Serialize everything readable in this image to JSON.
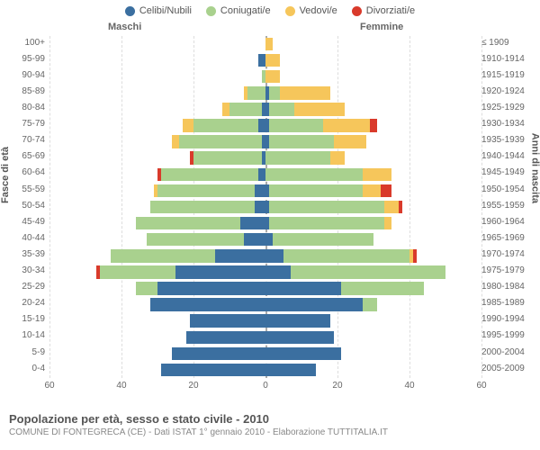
{
  "legend": {
    "items": [
      {
        "label": "Celibi/Nubili",
        "color": "#3b6fa0"
      },
      {
        "label": "Coniugati/e",
        "color": "#a9d18e"
      },
      {
        "label": "Vedovi/e",
        "color": "#f6c65b"
      },
      {
        "label": "Divorziati/e",
        "color": "#d93a2b"
      }
    ]
  },
  "headers": {
    "left": "Maschi",
    "right": "Femmine"
  },
  "axis_titles": {
    "left": "Fasce di età",
    "right": "Anni di nascita"
  },
  "chart": {
    "type": "population-pyramid",
    "xlim": 60,
    "xticks": [
      60,
      40,
      20,
      0,
      20,
      40,
      60
    ],
    "colors": {
      "celibi": "#3b6fa0",
      "coniugati": "#a9d18e",
      "vedovi": "#f6c65b",
      "divorziati": "#d93a2b",
      "grid": "#dddddd",
      "center": "#aaaaaa",
      "bg": "#ffffff"
    },
    "row_height_pct": 4.2,
    "age_labels": [
      "100+",
      "95-99",
      "90-94",
      "85-89",
      "80-84",
      "75-79",
      "70-74",
      "65-69",
      "60-64",
      "55-59",
      "50-54",
      "45-49",
      "40-44",
      "35-39",
      "30-34",
      "25-29",
      "20-24",
      "15-19",
      "10-14",
      "5-9",
      "0-4"
    ],
    "birth_labels": [
      "≤ 1909",
      "1910-1914",
      "1915-1919",
      "1920-1924",
      "1925-1929",
      "1930-1934",
      "1935-1939",
      "1940-1944",
      "1945-1949",
      "1950-1954",
      "1955-1959",
      "1960-1964",
      "1965-1969",
      "1970-1974",
      "1975-1979",
      "1980-1984",
      "1985-1989",
      "1990-1994",
      "1995-1999",
      "2000-2004",
      "2005-2009"
    ],
    "data": [
      {
        "m": {
          "cel": 0,
          "con": 0,
          "ved": 0,
          "div": 0
        },
        "f": {
          "cel": 0,
          "con": 0,
          "ved": 2,
          "div": 0
        }
      },
      {
        "m": {
          "cel": 2,
          "con": 0,
          "ved": 0,
          "div": 0
        },
        "f": {
          "cel": 0,
          "con": 0,
          "ved": 4,
          "div": 0
        }
      },
      {
        "m": {
          "cel": 0,
          "con": 1,
          "ved": 0,
          "div": 0
        },
        "f": {
          "cel": 0,
          "con": 0,
          "ved": 4,
          "div": 0
        }
      },
      {
        "m": {
          "cel": 0,
          "con": 5,
          "ved": 1,
          "div": 0
        },
        "f": {
          "cel": 1,
          "con": 3,
          "ved": 14,
          "div": 0
        }
      },
      {
        "m": {
          "cel": 1,
          "con": 9,
          "ved": 2,
          "div": 0
        },
        "f": {
          "cel": 1,
          "con": 7,
          "ved": 14,
          "div": 0
        }
      },
      {
        "m": {
          "cel": 2,
          "con": 18,
          "ved": 3,
          "div": 0
        },
        "f": {
          "cel": 1,
          "con": 15,
          "ved": 13,
          "div": 2
        }
      },
      {
        "m": {
          "cel": 1,
          "con": 23,
          "ved": 2,
          "div": 0
        },
        "f": {
          "cel": 1,
          "con": 18,
          "ved": 9,
          "div": 0
        }
      },
      {
        "m": {
          "cel": 1,
          "con": 19,
          "ved": 0,
          "div": 1
        },
        "f": {
          "cel": 0,
          "con": 18,
          "ved": 4,
          "div": 0
        }
      },
      {
        "m": {
          "cel": 2,
          "con": 27,
          "ved": 0,
          "div": 1
        },
        "f": {
          "cel": 0,
          "con": 27,
          "ved": 8,
          "div": 0
        }
      },
      {
        "m": {
          "cel": 3,
          "con": 27,
          "ved": 1,
          "div": 0
        },
        "f": {
          "cel": 1,
          "con": 26,
          "ved": 5,
          "div": 3
        }
      },
      {
        "m": {
          "cel": 3,
          "con": 29,
          "ved": 0,
          "div": 0
        },
        "f": {
          "cel": 1,
          "con": 32,
          "ved": 4,
          "div": 1
        }
      },
      {
        "m": {
          "cel": 7,
          "con": 29,
          "ved": 0,
          "div": 0
        },
        "f": {
          "cel": 1,
          "con": 32,
          "ved": 2,
          "div": 0
        }
      },
      {
        "m": {
          "cel": 6,
          "con": 27,
          "ved": 0,
          "div": 0
        },
        "f": {
          "cel": 2,
          "con": 28,
          "ved": 0,
          "div": 0
        }
      },
      {
        "m": {
          "cel": 14,
          "con": 29,
          "ved": 0,
          "div": 0
        },
        "f": {
          "cel": 5,
          "con": 35,
          "ved": 1,
          "div": 1
        }
      },
      {
        "m": {
          "cel": 25,
          "con": 21,
          "ved": 0,
          "div": 1
        },
        "f": {
          "cel": 7,
          "con": 43,
          "ved": 0,
          "div": 0
        }
      },
      {
        "m": {
          "cel": 30,
          "con": 6,
          "ved": 0,
          "div": 0
        },
        "f": {
          "cel": 21,
          "con": 23,
          "ved": 0,
          "div": 0
        }
      },
      {
        "m": {
          "cel": 32,
          "con": 0,
          "ved": 0,
          "div": 0
        },
        "f": {
          "cel": 27,
          "con": 4,
          "ved": 0,
          "div": 0
        }
      },
      {
        "m": {
          "cel": 21,
          "con": 0,
          "ved": 0,
          "div": 0
        },
        "f": {
          "cel": 18,
          "con": 0,
          "ved": 0,
          "div": 0
        }
      },
      {
        "m": {
          "cel": 22,
          "con": 0,
          "ved": 0,
          "div": 0
        },
        "f": {
          "cel": 19,
          "con": 0,
          "ved": 0,
          "div": 0
        }
      },
      {
        "m": {
          "cel": 26,
          "con": 0,
          "ved": 0,
          "div": 0
        },
        "f": {
          "cel": 21,
          "con": 0,
          "ved": 0,
          "div": 0
        }
      },
      {
        "m": {
          "cel": 29,
          "con": 0,
          "ved": 0,
          "div": 0
        },
        "f": {
          "cel": 14,
          "con": 0,
          "ved": 0,
          "div": 0
        }
      }
    ]
  },
  "footer": {
    "title": "Popolazione per età, sesso e stato civile - 2010",
    "subtitle": "COMUNE DI FONTEGRECA (CE) - Dati ISTAT 1° gennaio 2010 - Elaborazione TUTTITALIA.IT"
  }
}
